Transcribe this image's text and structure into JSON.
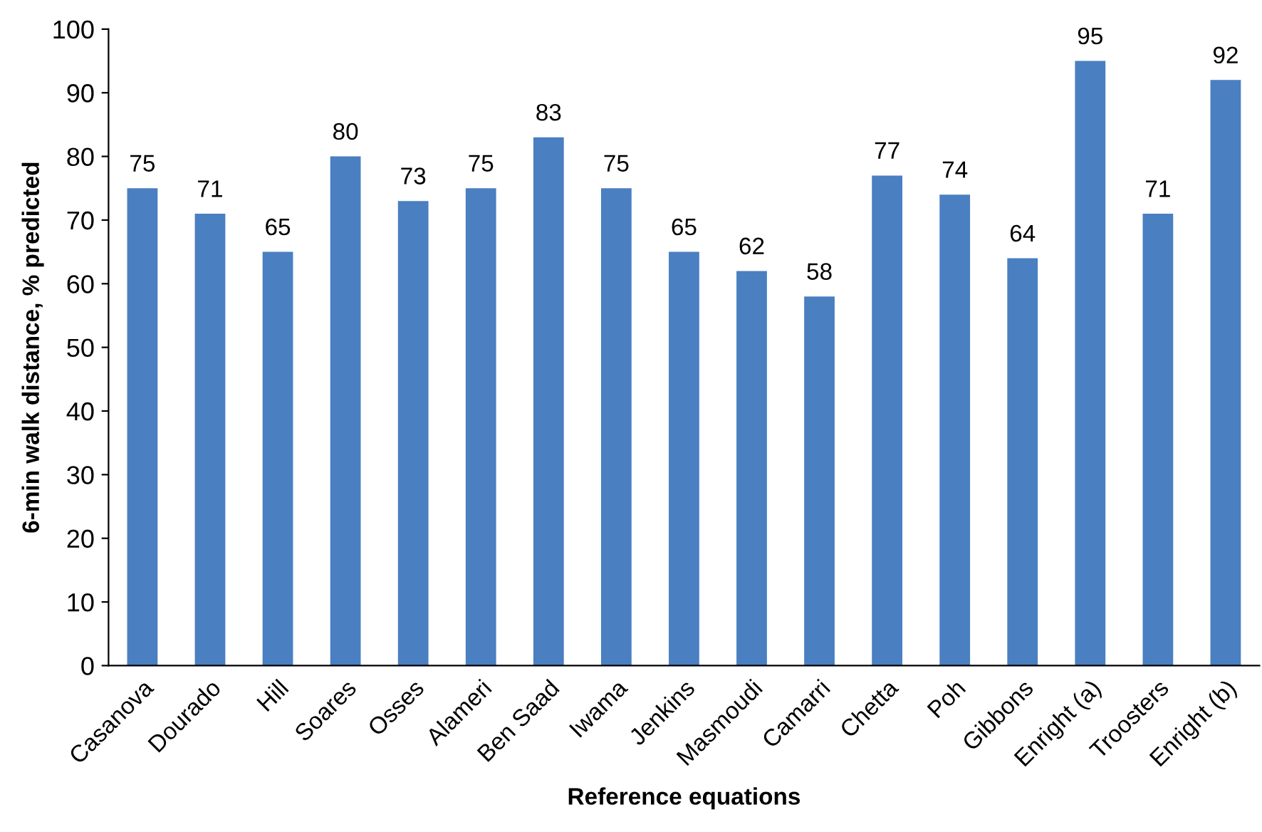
{
  "chart_data": {
    "type": "bar",
    "xlabel": "Reference equations",
    "ylabel": "6-min walk distance, % predicted",
    "categories": [
      "Casanova",
      "Dourado",
      "Hill",
      "Soares",
      "Osses",
      "Alameri",
      "Ben Saad",
      "Iwama",
      "Jenkins",
      "Masmoudi",
      "Camarri",
      "Chetta",
      "Poh",
      "Gibbons",
      "Enright (a)",
      "Troosters",
      "Enright (b)"
    ],
    "values": [
      75,
      71,
      65,
      80,
      73,
      75,
      83,
      75,
      65,
      62,
      58,
      77,
      74,
      64,
      95,
      71,
      92
    ],
    "color": "#4a7fc1",
    "ylim": [
      0,
      100
    ],
    "yticks": [
      0,
      10,
      20,
      30,
      40,
      50,
      60,
      70,
      80,
      90,
      100
    ],
    "grid": false,
    "legend": false,
    "data_labels": true
  }
}
